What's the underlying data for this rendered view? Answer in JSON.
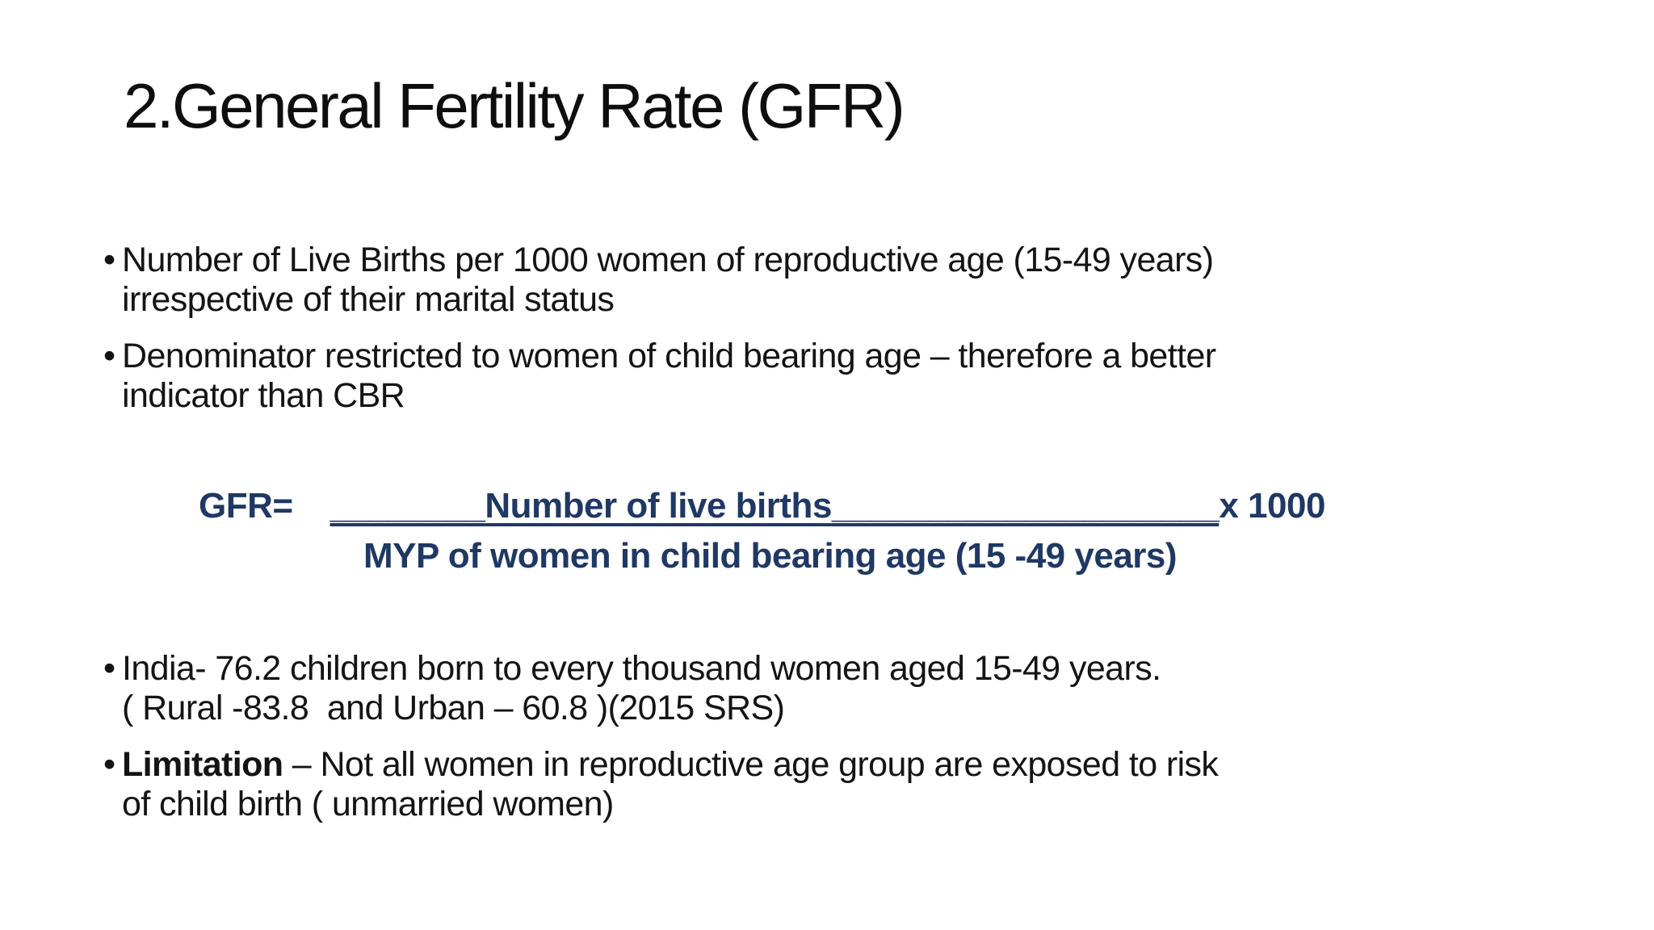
{
  "slide": {
    "title": "2.General Fertility Rate (GFR)",
    "colors": {
      "background": "#ffffff",
      "body_text": "#141414",
      "formula_navy": "#1f3864"
    },
    "bullets_top": [
      {
        "text": "Number of Live Births per 1000 women of reproductive age (15-49 years)\nirrespective of their marital status"
      },
      {
        "text": "Denominator restricted to women of child bearing age – therefore a better\nindicator than CBR"
      }
    ],
    "formula": {
      "lhs": "GFR=",
      "numerator_pre": "________",
      "numerator_label": "Number of live births",
      "numerator_post": "____________________",
      "multiplier": "x 1000",
      "denominator": "MYP of women in child bearing age (15 -49 years)"
    },
    "bullets_bottom": [
      {
        "text": "India- 76.2 children born to every thousand women aged 15-49 years.\n( Rural -83.8  and Urban – 60.8 )(2015 SRS)"
      },
      {
        "lead": "Limitation",
        "rest": " – Not all women in reproductive age group are exposed to risk\nof child birth ( unmarried women)"
      }
    ]
  }
}
